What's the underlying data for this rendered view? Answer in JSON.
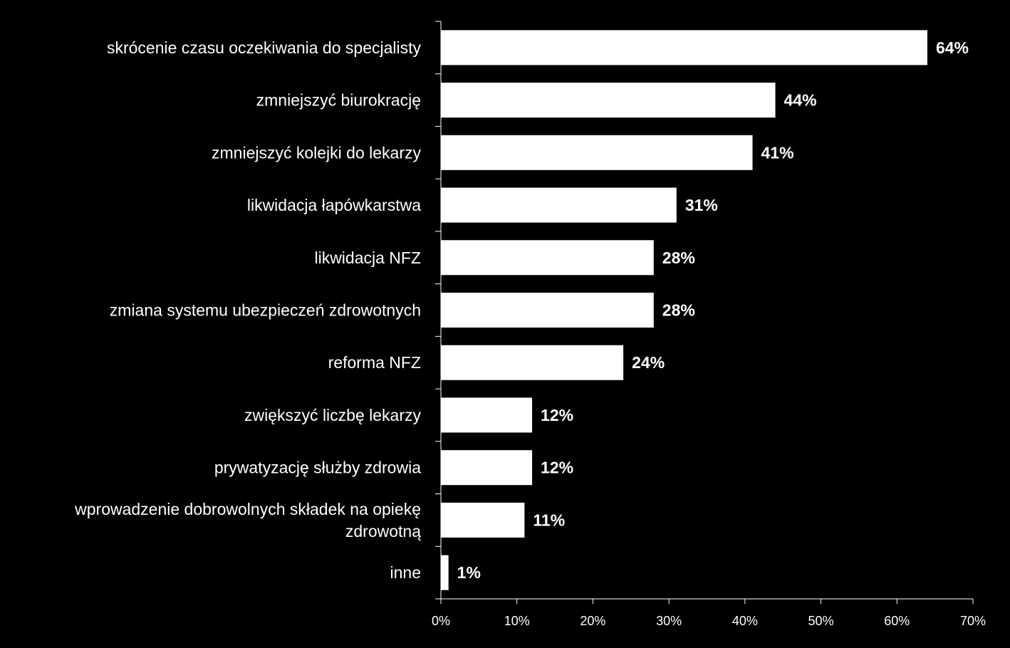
{
  "chart_data": {
    "type": "bar",
    "orientation": "horizontal",
    "categories": [
      "skrócenie czasu oczekiwania do specjalisty",
      "zmniejszyć biurokrację",
      "zmniejszyć kolejki do lekarzy",
      "likwidacja łapówkarstwa",
      "likwidacja NFZ",
      "zmiana systemu ubezpieczeń zdrowotnych",
      "reforma NFZ",
      "zwiększyć liczbę lekarzy",
      "prywatyzację służby zdrowia",
      "wprowadzenie dobrowolnych składek na opiekę zdrowotną",
      "inne"
    ],
    "category_lines": [
      [
        "skrócenie czasu oczekiwania do specjalisty"
      ],
      [
        "zmniejszyć biurokrację"
      ],
      [
        "zmniejszyć kolejki do lekarzy"
      ],
      [
        "likwidacja łapówkarstwa"
      ],
      [
        "likwidacja NFZ"
      ],
      [
        "zmiana systemu ubezpieczeń zdrowotnych"
      ],
      [
        "reforma NFZ"
      ],
      [
        "zwiększyć liczbę lekarzy"
      ],
      [
        "prywatyzację służby zdrowia"
      ],
      [
        "wprowadzenie dobrowolnych składek na opiekę",
        "zdrowotną"
      ],
      [
        "inne"
      ]
    ],
    "values": [
      64,
      44,
      41,
      31,
      28,
      28,
      24,
      12,
      12,
      11,
      1
    ],
    "data_labels": [
      "64%",
      "44%",
      "41%",
      "31%",
      "28%",
      "28%",
      "24%",
      "12%",
      "12%",
      "11%",
      "1%"
    ],
    "x_ticks": [
      0,
      10,
      20,
      30,
      40,
      50,
      60,
      70
    ],
    "x_tick_labels": [
      "0%",
      "10%",
      "20%",
      "30%",
      "40%",
      "50%",
      "60%",
      "70%"
    ],
    "xlim": [
      0,
      70
    ],
    "title": "",
    "xlabel": "",
    "ylabel": "",
    "grid": false,
    "legend": "none",
    "colors": {
      "background": "#000000",
      "bar": "#ffffff",
      "text": "#ffffff",
      "axis": "#ffffff"
    }
  }
}
